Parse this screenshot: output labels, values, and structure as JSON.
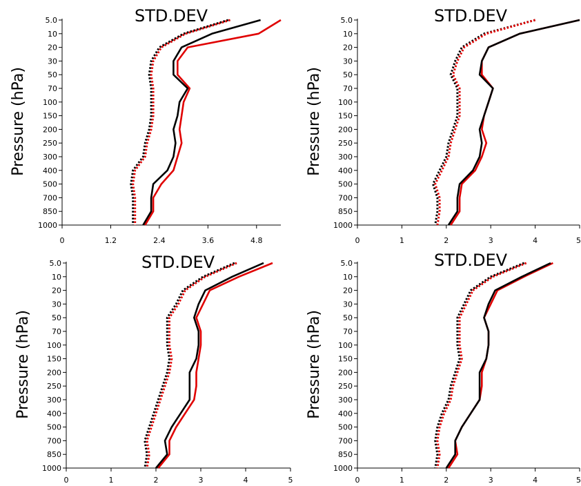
{
  "chart_data": [
    {
      "type": "line",
      "title": "STD.DEV",
      "xlabel": "",
      "ylabel": "Pressure (hPa)",
      "xlim": [
        0,
        5.4
      ],
      "xticks": [
        "0",
        "1.2",
        "2.4",
        "3.6",
        "4.8"
      ],
      "xtick_values": [
        0,
        1.2,
        2.4,
        3.6,
        4.8
      ],
      "y_categories": [
        "5.0",
        "10",
        "20",
        "30",
        "50",
        "70",
        "100",
        "150",
        "200",
        "250",
        "300",
        "400",
        "500",
        "700",
        "850",
        "1000"
      ],
      "grid": false,
      "series": [
        {
          "color": "#e00000",
          "style": "solid",
          "values": [
            5.4,
            4.85,
            3.1,
            2.85,
            2.85,
            3.15,
            3.0,
            2.95,
            2.9,
            2.95,
            2.85,
            2.75,
            2.45,
            2.25,
            2.25,
            2.05
          ]
        },
        {
          "color": "#000000",
          "style": "solid",
          "values": [
            4.9,
            3.7,
            2.95,
            2.75,
            2.75,
            3.1,
            2.9,
            2.85,
            2.75,
            2.8,
            2.75,
            2.6,
            2.25,
            2.2,
            2.2,
            2.0
          ]
        },
        {
          "color": "#000000",
          "style": "dotted",
          "values": [
            4.1,
            3.0,
            2.4,
            2.2,
            2.15,
            2.2,
            2.2,
            2.2,
            2.15,
            2.05,
            2.0,
            1.75,
            1.7,
            1.75,
            1.75,
            1.75
          ]
        },
        {
          "color": "#e00000",
          "style": "dotted",
          "values": [
            4.15,
            3.05,
            2.45,
            2.25,
            2.2,
            2.25,
            2.25,
            2.25,
            2.2,
            2.1,
            2.05,
            1.8,
            1.75,
            1.8,
            1.8,
            1.8
          ]
        }
      ]
    },
    {
      "type": "line",
      "title": "STD.DEV",
      "xlabel": "",
      "ylabel": "Pressure (hPa)",
      "xlim": [
        0,
        5
      ],
      "xticks": [
        "0",
        "1",
        "2",
        "3",
        "4",
        "5"
      ],
      "xtick_values": [
        0,
        1,
        2,
        3,
        4,
        5
      ],
      "y_categories": [
        "5.0",
        "10",
        "20",
        "30",
        "50",
        "70",
        "100",
        "150",
        "200",
        "250",
        "300",
        "400",
        "500",
        "700",
        "850",
        "1000"
      ],
      "grid": false,
      "series": [
        {
          "color": "#e00000",
          "style": "solid",
          "values": [
            5.0,
            3.65,
            2.95,
            2.8,
            2.8,
            3.05,
            2.95,
            2.85,
            2.8,
            2.9,
            2.8,
            2.65,
            2.35,
            2.3,
            2.3,
            2.1
          ]
        },
        {
          "color": "#000000",
          "style": "solid",
          "values": [
            5.0,
            3.65,
            2.95,
            2.8,
            2.75,
            3.05,
            2.95,
            2.85,
            2.75,
            2.8,
            2.75,
            2.6,
            2.3,
            2.25,
            2.25,
            2.05
          ]
        },
        {
          "color": "#000000",
          "style": "dotted",
          "values": [
            4.0,
            2.85,
            2.35,
            2.2,
            2.1,
            2.25,
            2.25,
            2.25,
            2.15,
            2.05,
            2.0,
            1.85,
            1.7,
            1.8,
            1.8,
            1.75
          ]
        },
        {
          "color": "#e00000",
          "style": "dotted",
          "values": [
            4.0,
            2.9,
            2.4,
            2.25,
            2.15,
            2.3,
            2.3,
            2.3,
            2.2,
            2.1,
            2.05,
            1.9,
            1.75,
            1.85,
            1.85,
            1.8
          ]
        }
      ]
    },
    {
      "type": "line",
      "title": "STD.DEV",
      "xlabel": "",
      "ylabel": "Pressure (hPa)",
      "xlim": [
        0,
        5
      ],
      "xticks": [
        "0",
        "1",
        "2",
        "3",
        "4",
        "5"
      ],
      "xtick_values": [
        0,
        1,
        2,
        3,
        4,
        5
      ],
      "y_categories": [
        "5.0",
        "10",
        "20",
        "30",
        "50",
        "70",
        "100",
        "150",
        "200",
        "250",
        "300",
        "400",
        "500",
        "700",
        "850",
        "1000"
      ],
      "grid": false,
      "series": [
        {
          "color": "#e00000",
          "style": "solid",
          "values": [
            4.6,
            3.85,
            3.2,
            3.05,
            2.9,
            3.0,
            3.0,
            2.95,
            2.9,
            2.9,
            2.85,
            2.65,
            2.45,
            2.3,
            2.3,
            2.05
          ]
        },
        {
          "color": "#000000",
          "style": "solid",
          "values": [
            4.4,
            3.7,
            3.1,
            2.95,
            2.85,
            2.95,
            2.95,
            2.9,
            2.75,
            2.75,
            2.75,
            2.55,
            2.35,
            2.2,
            2.25,
            2.0
          ]
        },
        {
          "color": "#000000",
          "style": "dotted",
          "values": [
            3.75,
            3.05,
            2.6,
            2.45,
            2.25,
            2.25,
            2.25,
            2.3,
            2.25,
            2.15,
            2.05,
            1.95,
            1.85,
            1.75,
            1.8,
            1.75
          ]
        },
        {
          "color": "#e00000",
          "style": "dotted",
          "values": [
            3.8,
            3.1,
            2.65,
            2.5,
            2.3,
            2.3,
            2.3,
            2.35,
            2.3,
            2.2,
            2.1,
            2.0,
            1.9,
            1.8,
            1.85,
            1.8
          ]
        }
      ]
    },
    {
      "type": "line",
      "title": "STD.DEV",
      "xlabel": "",
      "ylabel": "Pressure (hPa)",
      "xlim": [
        0,
        5
      ],
      "xticks": [
        "0",
        "1",
        "2",
        "3",
        "4",
        "5"
      ],
      "xtick_values": [
        0,
        1,
        2,
        3,
        4,
        5
      ],
      "y_categories": [
        "5.0",
        "10",
        "20",
        "30",
        "50",
        "70",
        "100",
        "150",
        "200",
        "250",
        "300",
        "400",
        "500",
        "700",
        "850",
        "1000"
      ],
      "grid": false,
      "series": [
        {
          "color": "#e00000",
          "style": "solid",
          "values": [
            4.4,
            3.75,
            3.15,
            3.0,
            2.85,
            2.95,
            2.95,
            2.9,
            2.8,
            2.8,
            2.75,
            2.55,
            2.35,
            2.2,
            2.25,
            2.05
          ]
        },
        {
          "color": "#000000",
          "style": "solid",
          "values": [
            4.35,
            3.7,
            3.1,
            2.95,
            2.85,
            2.95,
            2.95,
            2.9,
            2.75,
            2.75,
            2.75,
            2.55,
            2.35,
            2.2,
            2.2,
            2.0
          ]
        },
        {
          "color": "#000000",
          "style": "dotted",
          "values": [
            3.75,
            3.0,
            2.55,
            2.4,
            2.25,
            2.25,
            2.25,
            2.3,
            2.2,
            2.1,
            2.05,
            1.9,
            1.8,
            1.75,
            1.8,
            1.75
          ]
        },
        {
          "color": "#e00000",
          "style": "dotted",
          "values": [
            3.8,
            3.05,
            2.6,
            2.45,
            2.3,
            2.3,
            2.3,
            2.35,
            2.25,
            2.15,
            2.1,
            1.95,
            1.85,
            1.8,
            1.85,
            1.8
          ]
        }
      ]
    }
  ]
}
